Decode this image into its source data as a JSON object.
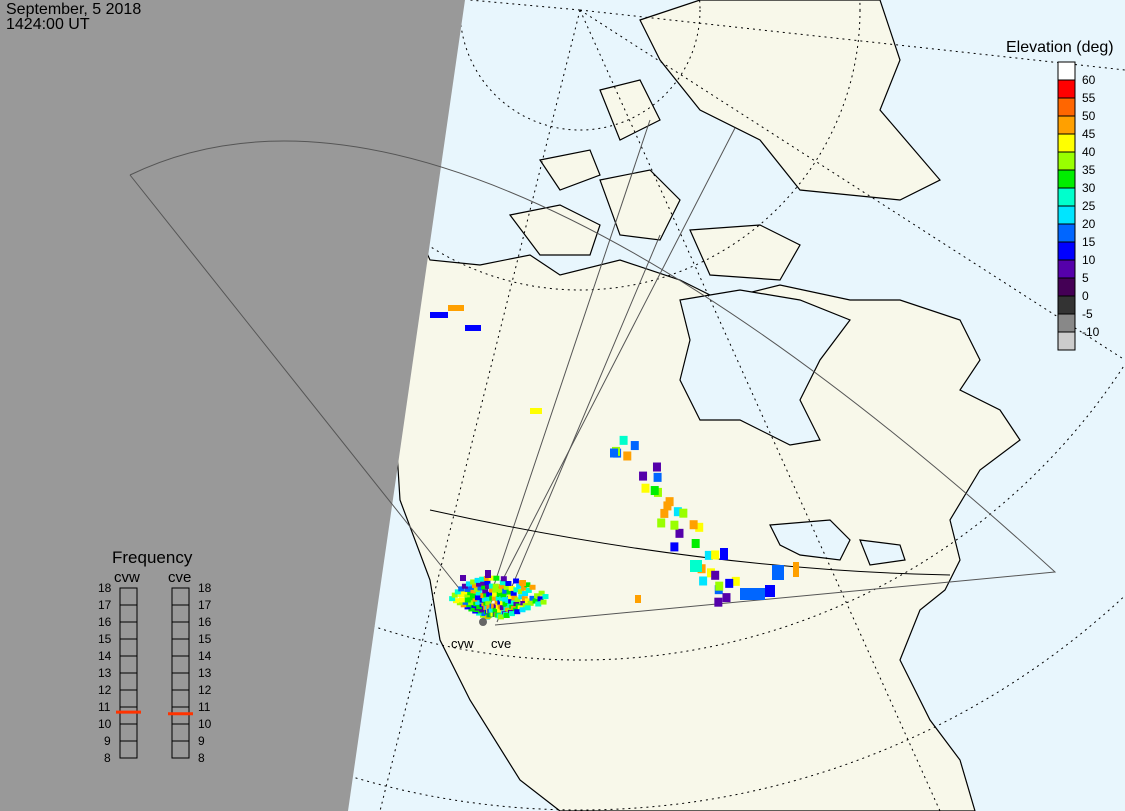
{
  "header": {
    "date": "September, 5 2018",
    "time": "1424:00 UT"
  },
  "colors": {
    "night": "#999999",
    "ocean": "#e8f6fd",
    "land": "#f8f8ea",
    "frequency_marker": "#ff3300"
  },
  "elevation_legend": {
    "title": "Elevation (deg)",
    "labels": [
      "60",
      "55",
      "50",
      "45",
      "40",
      "35",
      "30",
      "25",
      "20",
      "15",
      "10",
      "5",
      "0",
      "-5",
      "-10"
    ],
    "colors": [
      "#ffffff",
      "#ff0000",
      "#ff6600",
      "#ffa000",
      "#ffff00",
      "#99ff00",
      "#00ee00",
      "#00ffcc",
      "#00e5ff",
      "#0066ff",
      "#0000ff",
      "#5500aa",
      "#440055",
      "#333333",
      "#888888",
      "#cccccc"
    ]
  },
  "frequency_panel": {
    "title": "Frequency",
    "scale": [
      "18",
      "17",
      "16",
      "15",
      "14",
      "13",
      "12",
      "11",
      "10",
      "9",
      "8"
    ],
    "radars": [
      {
        "name": "cvw",
        "frequency_mhz": 10.7
      },
      {
        "name": "cve",
        "frequency_mhz": 10.6
      }
    ]
  },
  "radar_labels": [
    "cvw",
    "cve"
  ]
}
